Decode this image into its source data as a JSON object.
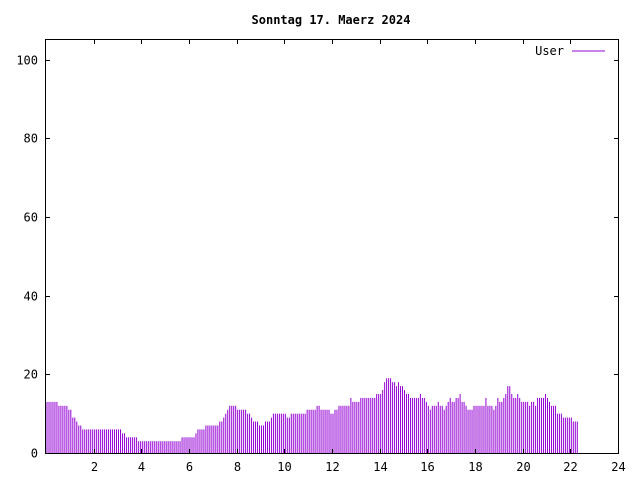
{
  "chart_data": {
    "type": "bar",
    "title": "Sonntag 17. Maerz 2024",
    "xlabel": "",
    "ylabel": "",
    "xlim": [
      0,
      24
    ],
    "ylim": [
      0,
      105
    ],
    "x_ticks": [
      "2",
      "4",
      "6",
      "8",
      "10",
      "12",
      "14",
      "16",
      "18",
      "20",
      "22",
      "24"
    ],
    "y_ticks": [
      "0",
      "20",
      "40",
      "60",
      "80",
      "100"
    ],
    "grid": false,
    "legend_position": "top-right",
    "series": [
      {
        "name": "User",
        "color": "#9400d3",
        "interval_minutes": 5,
        "values": [
          13,
          13,
          13,
          13,
          13,
          13,
          12,
          12,
          12,
          12,
          12,
          11,
          11,
          9,
          9,
          8,
          7,
          7,
          6,
          6,
          6,
          6,
          6,
          6,
          6,
          6,
          6,
          6,
          6,
          6,
          6,
          6,
          6,
          6,
          6,
          6,
          6,
          6,
          5,
          5,
          4,
          4,
          4,
          4,
          4,
          4,
          3,
          3,
          3,
          3,
          3,
          3,
          3,
          3,
          3,
          3,
          3,
          3,
          3,
          3,
          3,
          3,
          3,
          3,
          3,
          3,
          3,
          3,
          4,
          4,
          4,
          4,
          4,
          4,
          4,
          5,
          6,
          6,
          6,
          6,
          7,
          7,
          7,
          7,
          7,
          7,
          7,
          8,
          8,
          9,
          10,
          11,
          12,
          12,
          12,
          12,
          11,
          11,
          11,
          11,
          11,
          10,
          10,
          9,
          8,
          8,
          8,
          7,
          7,
          7,
          8,
          8,
          8,
          9,
          10,
          10,
          10,
          10,
          10,
          10,
          10,
          9,
          9,
          10,
          10,
          10,
          10,
          10,
          10,
          10,
          10,
          11,
          11,
          11,
          11,
          11,
          12,
          12,
          11,
          11,
          11,
          11,
          11,
          10,
          10,
          11,
          11,
          12,
          12,
          12,
          12,
          12,
          12,
          14,
          13,
          13,
          13,
          13,
          14,
          14,
          14,
          14,
          14,
          14,
          14,
          14,
          15,
          15,
          15,
          16,
          18,
          19,
          19,
          19,
          18,
          18,
          17,
          18,
          17,
          17,
          16,
          15,
          15,
          14,
          14,
          14,
          14,
          14,
          15,
          14,
          14,
          13,
          12,
          11,
          12,
          12,
          12,
          13,
          12,
          12,
          11,
          12,
          13,
          14,
          13,
          13,
          14,
          14,
          15,
          13,
          13,
          12,
          11,
          11,
          11,
          12,
          12,
          12,
          12,
          12,
          12,
          14,
          12,
          12,
          12,
          11,
          12,
          14,
          13,
          13,
          14,
          15,
          17,
          17,
          15,
          14,
          14,
          15,
          14,
          13,
          13,
          13,
          13,
          12,
          13,
          13,
          12,
          14,
          14,
          14,
          14,
          15,
          14,
          13,
          12,
          12,
          12,
          10,
          10,
          10,
          9,
          9,
          9,
          9,
          9,
          8,
          8,
          8
        ]
      }
    ]
  }
}
